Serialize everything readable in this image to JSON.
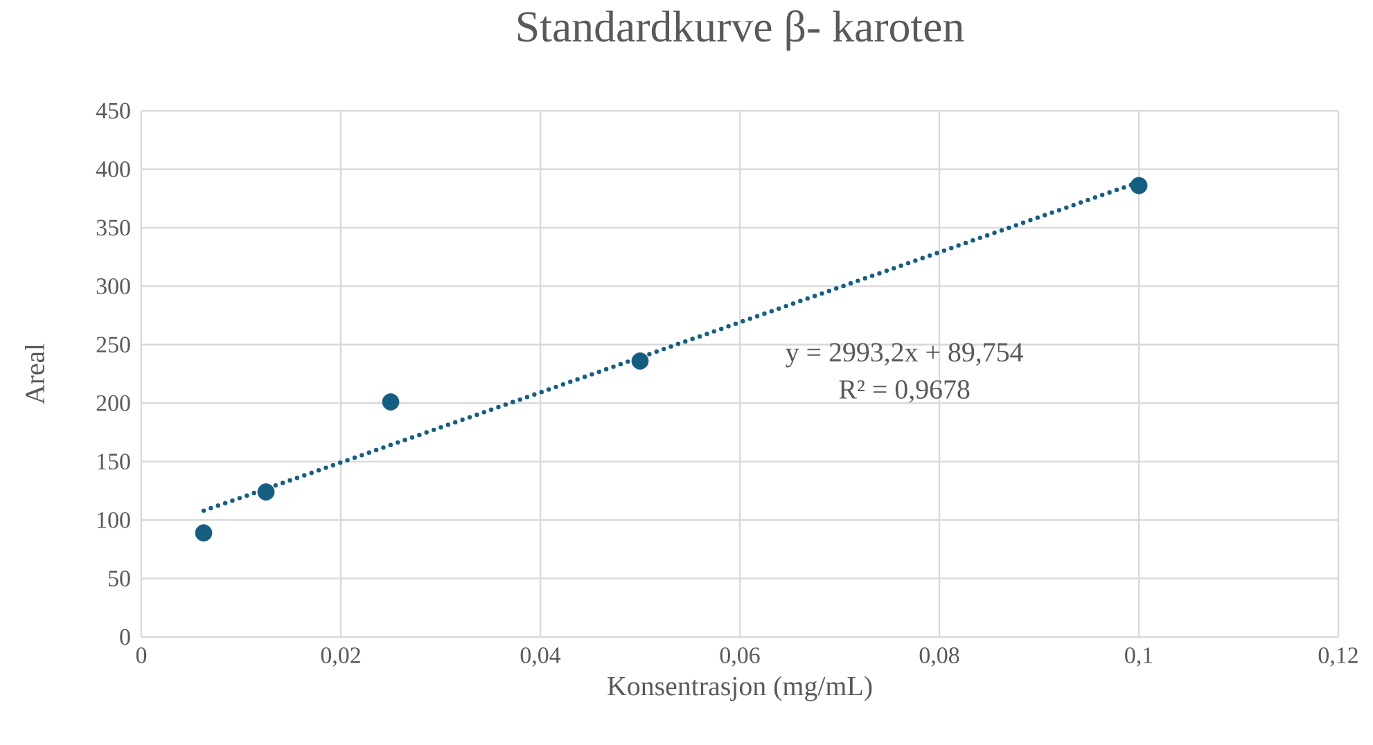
{
  "chart_data": {
    "type": "scatter",
    "title": "Standardkurve β- karoten",
    "xlabel": "Konsentrasjon (mg/mL)",
    "ylabel": "Areal",
    "x": [
      0.00625,
      0.0125,
      0.025,
      0.05,
      0.1
    ],
    "series": [
      {
        "type": "scatter",
        "color": "#165e80",
        "marker": "circle",
        "values": [
          89,
          124,
          201,
          236,
          386
        ]
      },
      {
        "type": "line",
        "color": "#165e80",
        "marker": "none",
        "line_style": "dotted",
        "x": [
          0.00625,
          0.1
        ],
        "values": [
          108,
          389
        ]
      }
    ],
    "xlim": [
      0,
      0.12
    ],
    "xticks": [
      0,
      {
        "value": 0.02,
        "label": "0,02"
      },
      {
        "value": 0.04,
        "label": "0,04"
      },
      {
        "value": 0.06,
        "label": "0,06"
      },
      {
        "value": 0.08,
        "label": "0,08"
      },
      {
        "value": 0.1,
        "label": "0,1"
      },
      {
        "value": 0.12,
        "label": "0,12"
      }
    ],
    "ylim": [
      0,
      450
    ],
    "yticks": [
      0,
      50,
      100,
      150,
      200,
      250,
      300,
      350,
      400,
      450
    ],
    "grid": true,
    "annotations": [
      "y = 2993,2x + 89,754",
      "R² = 0,9678"
    ]
  }
}
